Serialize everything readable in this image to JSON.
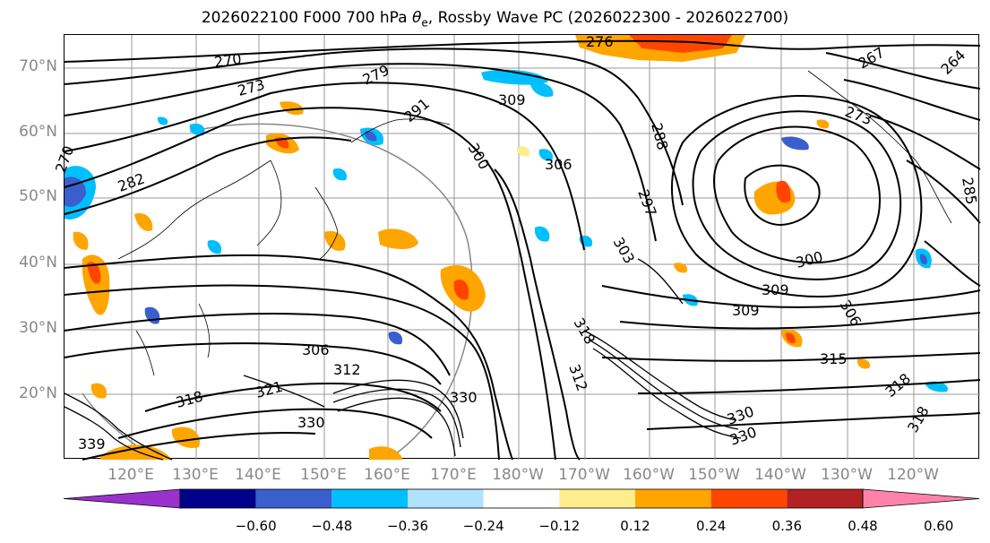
{
  "title": "2026022100 F000 700 hPa θe, Rossby Wave PC (2026022300 - 2026022700)",
  "title_prefix": "2026022100 F000 700 hPa ",
  "title_symbol": "θ",
  "title_sub": "e",
  "title_suffix": ", Rossby Wave PC (2026022300 - 2026022700)",
  "lat_labels": [
    "70°N",
    "60°N",
    "50°N",
    "40°N",
    "30°N",
    "20°N"
  ],
  "lon_labels": [
    "120°E",
    "130°E",
    "140°E",
    "150°E",
    "160°E",
    "170°E",
    "180°W",
    "170°W",
    "160°W",
    "150°W",
    "140°W",
    "130°W",
    "120°W"
  ],
  "contour_labels": [
    "276",
    "270",
    "273",
    "279",
    "291",
    "300",
    "306",
    "309",
    "303",
    "297",
    "288",
    "267",
    "264",
    "273",
    "282",
    "285",
    "300",
    "309",
    "309",
    "306",
    "306",
    "312",
    "318",
    "321",
    "330",
    "339",
    "330",
    "318",
    "315",
    "312",
    "318",
    "330",
    "330",
    "318",
    "270"
  ],
  "colorbar": {
    "tick_labels": [
      "−0.60",
      "−0.48",
      "−0.36",
      "−0.24",
      "−0.12",
      "0.12",
      "0.24",
      "0.36",
      "0.48",
      "0.60"
    ],
    "colors": [
      "#9932cc",
      "#00008b",
      "#3a5fcd",
      "#00bfff",
      "#b0e2ff",
      "#ffffff",
      "#ffec8b",
      "#ffa500",
      "#ff4500",
      "#b22222",
      "#ff82ab"
    ],
    "extend": "both"
  },
  "colors": {
    "contour": "#000000",
    "grid": "#999999",
    "coast": "#000000",
    "axis_label": "#888888"
  }
}
